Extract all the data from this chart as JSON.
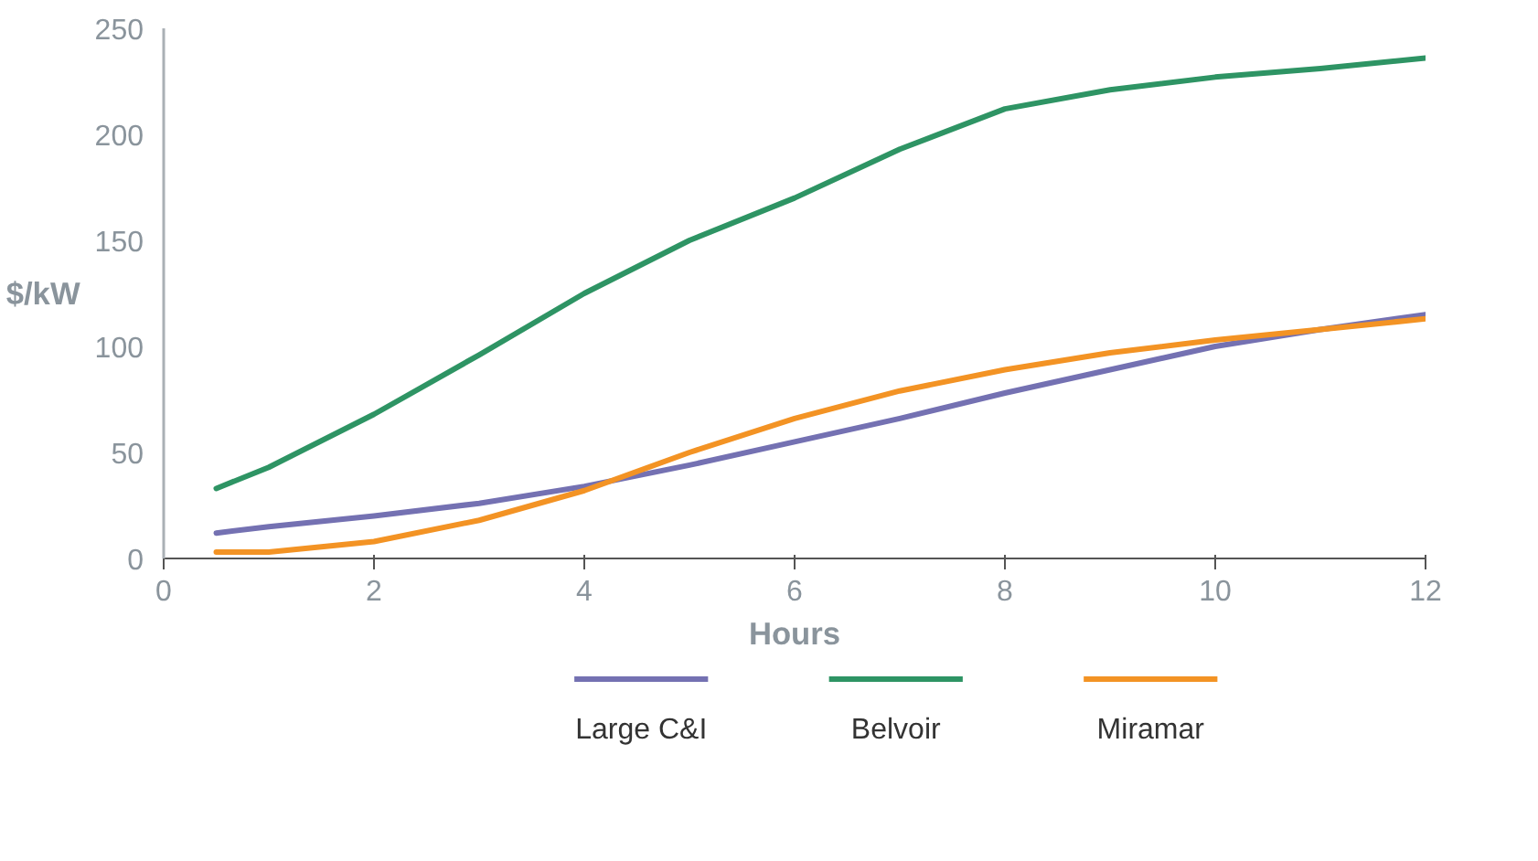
{
  "chart_data": {
    "type": "line",
    "xlabel": "Hours",
    "ylabel": "$/kW",
    "xlim": [
      0,
      12
    ],
    "xticks": [
      0,
      2,
      4,
      6,
      8,
      10,
      12
    ],
    "ylim": [
      0,
      250
    ],
    "yticks": [
      0,
      50,
      100,
      150,
      200,
      250
    ],
    "grid": false,
    "legend": "bottom",
    "marker": "none",
    "line_style": "solid",
    "series": [
      {
        "name": "Large C&I",
        "color": "#7471b2",
        "x": [
          0.5,
          1,
          2,
          3,
          4,
          5,
          6,
          7,
          8,
          9,
          10,
          11,
          12
        ],
        "values": [
          12,
          15,
          20,
          26,
          34,
          44,
          55,
          66,
          78,
          89,
          100,
          108,
          115
        ]
      },
      {
        "name": "Belvoir",
        "color": "#2e9464",
        "x": [
          0.5,
          1,
          2,
          3,
          4,
          5,
          6,
          7,
          8,
          9,
          10,
          11,
          12
        ],
        "values": [
          33,
          43,
          68,
          96,
          125,
          150,
          170,
          193,
          212,
          221,
          227,
          231,
          236
        ]
      },
      {
        "name": "Miramar",
        "color": "#f39324",
        "x": [
          0.5,
          1,
          2,
          3,
          4,
          5,
          6,
          7,
          8,
          9,
          10,
          11,
          12
        ],
        "values": [
          3,
          3,
          8,
          18,
          32,
          50,
          66,
          79,
          89,
          97,
          103,
          108,
          113
        ]
      }
    ]
  }
}
